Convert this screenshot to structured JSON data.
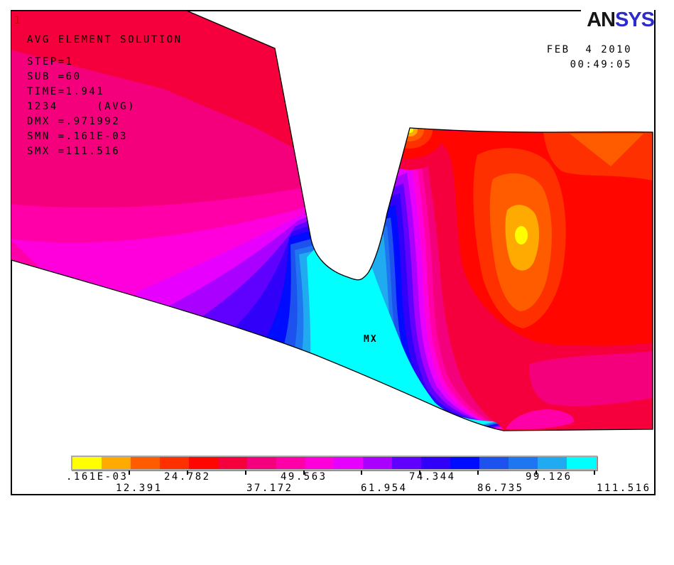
{
  "window": {
    "plot_number": "1"
  },
  "header": {
    "logo_an": "AN",
    "logo_sys": "SYS",
    "date": "FEB  4 2010",
    "time": "00:49:05"
  },
  "info_block": {
    "lines": [
      "AVG ELEMENT SOLUTION",
      "STEP=1",
      "SUB =60",
      "TIME=1.941",
      "1234     (AVG)",
      "DMX =.971992",
      "SMN =.161E-03",
      "SMX =111.516"
    ]
  },
  "plot": {
    "max_marker": "MX"
  },
  "legend": {
    "row1": [
      ".161E-03",
      "24.782",
      "49.563",
      "74.344",
      "99.126"
    ],
    "row2": [
      "12.391",
      "37.172",
      "61.954",
      "86.735",
      "111.516"
    ],
    "colors": [
      "#FFFF00",
      "#FFAA00",
      "#FF5C00",
      "#FF3000",
      "#FF0700",
      "#F5003C",
      "#F4007C",
      "#FF00A8",
      "#FF00DC",
      "#E800FF",
      "#AA00FF",
      "#6000FF",
      "#3000F8",
      "#000CFF",
      "#1E52EE",
      "#1E76F0",
      "#20AAF0",
      "#00FFFF"
    ]
  },
  "chart_data": {
    "type": "heatmap",
    "subtype": "fea-nodal-contour",
    "title": "AVG ELEMENT SOLUTION",
    "analysis": {
      "step": 1,
      "substep": 60,
      "time": 1.941,
      "item": "1234 (AVG)",
      "dmx": 0.971992,
      "smn": 0.000161,
      "smx": 111.516
    },
    "legend_levels": [
      0.000161,
      12.391,
      24.782,
      37.172,
      49.563,
      61.954,
      74.344,
      86.735,
      99.126,
      111.516
    ],
    "n_color_bands": 18,
    "band_colors": [
      "#FFFF00",
      "#FFAA00",
      "#FF5C00",
      "#FF3000",
      "#FF0700",
      "#F5003C",
      "#F4007C",
      "#FF00A8",
      "#FF00DC",
      "#E800FF",
      "#AA00FF",
      "#6000FF",
      "#3000F8",
      "#000CFF",
      "#1E52EE",
      "#1E76F0",
      "#20AAF0",
      "#00FFFF"
    ],
    "annotations": [
      "MX"
    ],
    "legend_position": "bottom",
    "notes": "Contour plot of a notched part; minimum (yellow/red bands) on outer body, maximum (cyan, MX) at notch root throat."
  }
}
